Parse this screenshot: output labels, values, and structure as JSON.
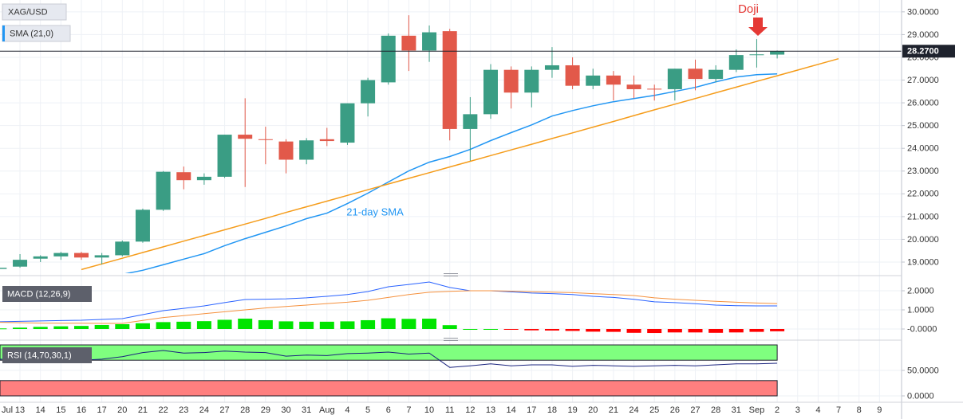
{
  "chart_data": [
    {
      "type": "candlestick",
      "symbol": "XAG/USD",
      "categories": [
        "Jul",
        "13",
        "14",
        "15",
        "16",
        "17",
        "20",
        "21",
        "22",
        "23",
        "24",
        "27",
        "28",
        "29",
        "30",
        "31",
        "Aug",
        "4",
        "5",
        "6",
        "7",
        "10",
        "11",
        "12",
        "13",
        "14",
        "17",
        "18",
        "19",
        "20",
        "21",
        "24",
        "25",
        "26",
        "27",
        "28",
        "31",
        "Sep",
        "2",
        "3",
        "4",
        "7",
        "8",
        "9"
      ],
      "open": [
        18.7,
        18.8,
        19.15,
        19.25,
        19.4,
        19.2,
        19.3,
        19.9,
        21.3,
        22.95,
        22.6,
        22.75,
        24.6,
        24.4,
        24.3,
        23.5,
        24.4,
        24.25,
        25.98,
        26.9,
        28.95,
        28.3,
        29.15,
        24.85,
        25.5,
        27.45,
        26.45,
        27.45,
        27.65,
        26.75,
        27.2,
        26.8,
        26.62,
        26.6,
        27.5,
        27.05,
        27.45,
        28.1,
        28.12,
        null,
        null,
        null,
        null,
        null
      ],
      "high": [
        18.8,
        19.35,
        19.3,
        19.45,
        19.45,
        19.4,
        19.95,
        21.35,
        23.0,
        23.2,
        22.9,
        24.6,
        26.2,
        24.95,
        24.4,
        24.45,
        24.9,
        25.98,
        27.1,
        29.05,
        29.85,
        29.4,
        29.25,
        26.25,
        27.7,
        27.6,
        27.6,
        28.45,
        28.0,
        27.5,
        27.4,
        27.2,
        26.8,
        27.5,
        27.9,
        27.65,
        28.35,
        28.8,
        28.3,
        null,
        null,
        null,
        null,
        null
      ],
      "low": [
        18.65,
        18.75,
        19.0,
        19.1,
        19.1,
        18.9,
        19.25,
        19.85,
        21.25,
        22.2,
        22.4,
        22.7,
        22.3,
        23.3,
        22.9,
        23.3,
        24.1,
        24.15,
        25.4,
        26.8,
        27.4,
        27.8,
        24.35,
        23.45,
        25.3,
        25.75,
        25.8,
        27.1,
        26.6,
        26.6,
        26.1,
        26.2,
        26.1,
        26.1,
        26.55,
        26.9,
        27.35,
        27.55,
        27.95,
        null,
        null,
        null,
        null,
        null
      ],
      "close": [
        18.75,
        19.1,
        19.25,
        19.4,
        19.2,
        19.3,
        19.9,
        21.3,
        22.97,
        22.6,
        22.75,
        24.6,
        24.42,
        24.38,
        23.5,
        24.35,
        24.32,
        25.98,
        27.0,
        28.95,
        28.3,
        29.1,
        24.85,
        25.5,
        27.45,
        26.45,
        27.45,
        27.65,
        26.75,
        27.2,
        26.8,
        26.6,
        26.6,
        27.5,
        27.05,
        27.45,
        28.1,
        28.13,
        28.27,
        null,
        null,
        null,
        null,
        null
      ],
      "up_color": "#3a9d84",
      "down_color": "#e2594a",
      "series": [
        {
          "name": "SMA (21,0)",
          "color": "#2196f3",
          "values": [
            null,
            null,
            null,
            null,
            null,
            null,
            18.46,
            18.64,
            18.88,
            19.13,
            19.37,
            19.72,
            20.03,
            20.31,
            20.59,
            20.91,
            21.15,
            21.57,
            22.03,
            22.52,
            23.01,
            23.39,
            23.64,
            23.95,
            24.34,
            24.69,
            25.03,
            25.42,
            25.66,
            25.87,
            26.05,
            26.19,
            26.33,
            26.5,
            26.68,
            26.92,
            27.13,
            27.24,
            27.27,
            null,
            null,
            null,
            null,
            null
          ]
        },
        {
          "color": "#f59c1a",
          "values": [
            null,
            null,
            null,
            null,
            18.67,
            18.92,
            19.17,
            19.42,
            19.67,
            19.92,
            20.17,
            20.42,
            20.67,
            20.92,
            21.18,
            21.43,
            21.68,
            21.93,
            22.18,
            22.43,
            22.68,
            22.93,
            23.18,
            23.43,
            23.68,
            23.93,
            24.18,
            24.43,
            24.68,
            24.93,
            25.18,
            25.44,
            25.69,
            25.94,
            26.19,
            26.44,
            26.69,
            26.94,
            27.19,
            27.44,
            27.69,
            27.94,
            null,
            null
          ]
        }
      ],
      "last_price": {
        "value": 28.27,
        "label": "28.2700"
      },
      "annotations": [
        {
          "text": "Doji",
          "color": "#e53935"
        },
        {
          "text": "21-day SMA",
          "color": "#2196f3"
        }
      ],
      "ylim": [
        18.51,
        30.52
      ],
      "yticks": [
        {
          "value": 19,
          "label": "19.0000"
        },
        {
          "value": 20,
          "label": "20.0000"
        },
        {
          "value": 21,
          "label": "21.0000"
        },
        {
          "value": 22,
          "label": "22.0000"
        },
        {
          "value": 23,
          "label": "23.0000"
        },
        {
          "value": 24,
          "label": "24.0000"
        },
        {
          "value": 25,
          "label": "25.0000"
        },
        {
          "value": 26,
          "label": "26.0000"
        },
        {
          "value": 27,
          "label": "27.0000"
        },
        {
          "value": 28,
          "label": "28.0000"
        },
        {
          "value": 29,
          "label": "29.0000"
        },
        {
          "value": 30,
          "label": "30.0000"
        }
      ],
      "grid": true
    },
    {
      "type": "macd",
      "title": "MACD (12,26,9)",
      "series": [
        {
          "color": "#2962ff",
          "values": [
            0.38,
            0.4,
            0.42,
            0.44,
            0.46,
            0.5,
            0.54,
            0.75,
            0.96,
            1.08,
            1.21,
            1.38,
            1.54,
            1.56,
            1.58,
            1.63,
            1.71,
            1.8,
            1.96,
            2.21,
            2.33,
            2.46,
            2.17,
            2.0,
            2.0,
            1.94,
            1.88,
            1.85,
            1.8,
            1.71,
            1.65,
            1.55,
            1.42,
            1.38,
            1.32,
            1.25,
            1.22,
            1.21,
            1.21,
            null,
            null,
            null,
            null,
            null
          ]
        },
        {
          "color": "#f5913e",
          "values": [
            0.35,
            0.33,
            0.31,
            0.3,
            0.3,
            0.29,
            0.29,
            0.45,
            0.6,
            0.7,
            0.8,
            0.9,
            1.0,
            1.1,
            1.18,
            1.25,
            1.33,
            1.4,
            1.5,
            1.65,
            1.8,
            1.92,
            1.97,
            2.0,
            2.0,
            1.98,
            1.95,
            1.93,
            1.9,
            1.85,
            1.8,
            1.75,
            1.63,
            1.56,
            1.5,
            1.45,
            1.4,
            1.36,
            1.33,
            null,
            null,
            null,
            null,
            null
          ]
        }
      ],
      "histogram": [
        0.03,
        0.07,
        0.11,
        0.14,
        0.16,
        0.21,
        0.25,
        0.3,
        0.36,
        0.38,
        0.41,
        0.48,
        0.54,
        0.46,
        0.4,
        0.38,
        0.38,
        0.4,
        0.46,
        0.56,
        0.53,
        0.54,
        0.2,
        0.0,
        0.0,
        -0.04,
        -0.07,
        -0.08,
        -0.1,
        -0.14,
        -0.15,
        -0.2,
        -0.21,
        -0.18,
        -0.18,
        -0.2,
        -0.18,
        -0.15,
        -0.12,
        null,
        null,
        null,
        null,
        null
      ],
      "positive_color": "#00e400",
      "negative_color": "#ff0000",
      "ylim": [
        -0.5,
        2.625
      ],
      "yticks": [
        {
          "value": 0,
          "label": "-0.0000"
        },
        {
          "value": 1,
          "label": "1.0000"
        },
        {
          "value": 2,
          "label": "2.0000"
        }
      ],
      "grid": true
    },
    {
      "type": "rsi",
      "title": "RSI (14,70,30,1)",
      "series": [
        {
          "color": "#1a237e",
          "values": [
            72,
            70,
            71,
            70,
            70,
            72,
            77,
            85,
            89,
            84,
            85,
            88,
            86,
            85,
            78,
            80,
            79,
            83,
            84,
            86,
            82,
            84,
            56,
            59,
            63,
            59,
            61,
            61,
            58,
            60,
            59,
            58,
            59,
            60,
            59,
            61,
            63,
            63,
            64,
            null,
            null,
            null,
            null,
            null
          ]
        }
      ],
      "bands": [
        {
          "from": 70,
          "to": 100,
          "color": "#7fff7f"
        },
        {
          "from": 0,
          "to": 30,
          "color": "#ff7f7f"
        }
      ],
      "ylim": [
        -12.5,
        104.7
      ],
      "yticks": [
        {
          "value": 0,
          "label": "0.0000"
        },
        {
          "value": 50,
          "label": "50.0000"
        }
      ],
      "grid": true
    }
  ]
}
